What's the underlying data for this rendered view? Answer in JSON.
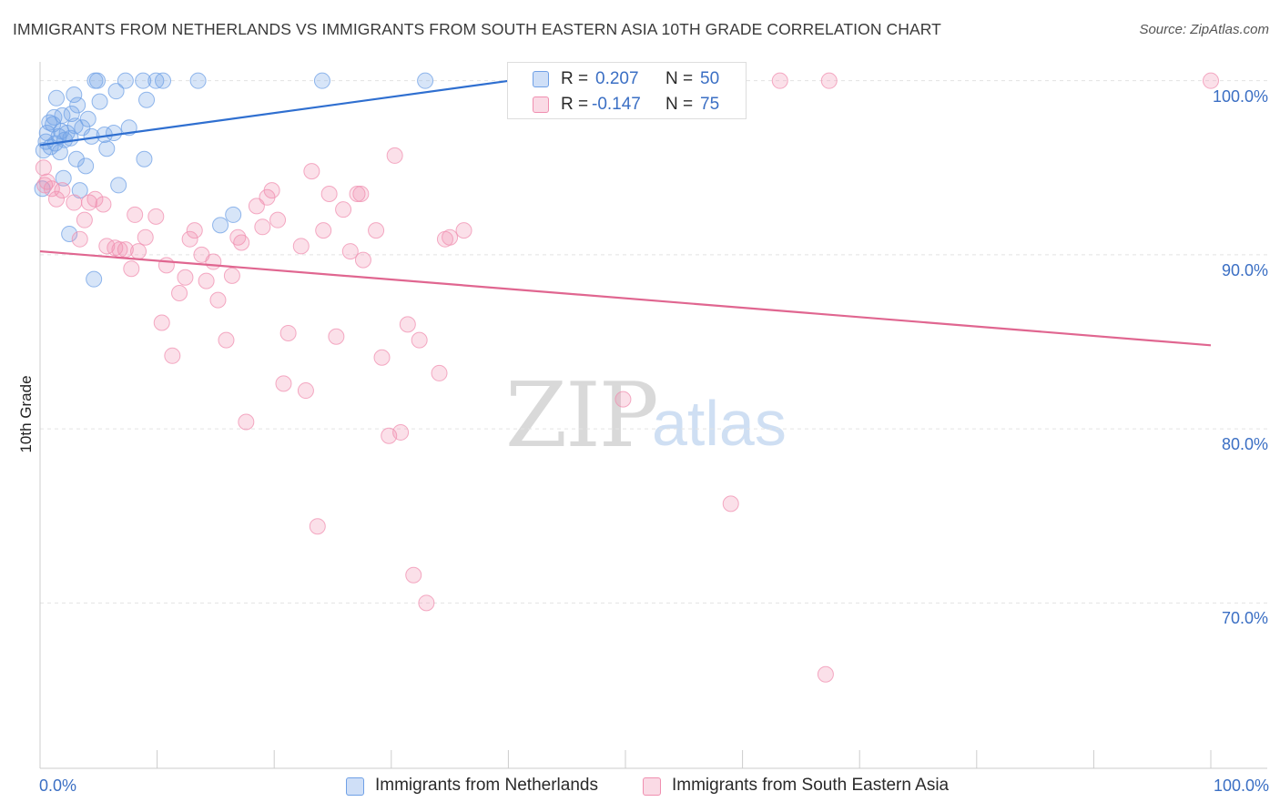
{
  "header": {
    "title": "IMMIGRANTS FROM NETHERLANDS VS IMMIGRANTS FROM SOUTH EASTERN ASIA 10TH GRADE CORRELATION CHART",
    "source": "Source: ZipAtlas.com"
  },
  "watermark": {
    "zip": "ZIP",
    "atlas": "atlas"
  },
  "legend": {
    "rows": [
      {
        "r_label": "R =",
        "r_value": "0.207",
        "n_label": "N =",
        "n_value": "50",
        "color": "#6fa0e6"
      },
      {
        "r_label": "R =",
        "r_value": "-0.147",
        "n_label": "N =",
        "n_value": "75",
        "color": "#f08fb0"
      }
    ]
  },
  "chart_data": {
    "type": "scatter",
    "title": "IMMIGRANTS FROM NETHERLANDS VS IMMIGRANTS FROM SOUTH EASTERN ASIA 10TH GRADE CORRELATION CHART",
    "xlabel": "",
    "ylabel": "10th Grade",
    "xlim": [
      0,
      100
    ],
    "ylim": [
      60.5,
      101.5
    ],
    "x_tick_labels": [
      "0.0%",
      "100.0%"
    ],
    "y_ticks": [
      70,
      80,
      90,
      100
    ],
    "y_tick_labels": [
      "70.0%",
      "80.0%",
      "90.0%",
      "100.0%"
    ],
    "grid": true,
    "legend_position": "top-center",
    "series": [
      {
        "name": "Immigrants from Netherlands",
        "color": "#6fa0e6",
        "trend": {
          "x": [
            0,
            40.1
          ],
          "y": [
            96.3,
            100.0
          ]
        },
        "points": [
          [
            0.3,
            96.0
          ],
          [
            0.5,
            96.5
          ],
          [
            0.6,
            97.0
          ],
          [
            0.9,
            96.2
          ],
          [
            1.1,
            97.5
          ],
          [
            1.2,
            97.9
          ],
          [
            1.4,
            99.0
          ],
          [
            1.6,
            96.8
          ],
          [
            1.8,
            97.1
          ],
          [
            1.9,
            98.0
          ],
          [
            2.1,
            96.6
          ],
          [
            2.3,
            97.0
          ],
          [
            2.5,
            91.2
          ],
          [
            2.7,
            98.1
          ],
          [
            2.9,
            99.2
          ],
          [
            3.1,
            95.5
          ],
          [
            3.2,
            98.6
          ],
          [
            3.4,
            93.7
          ],
          [
            3.6,
            97.3
          ],
          [
            3.9,
            95.1
          ],
          [
            4.1,
            97.8
          ],
          [
            4.4,
            96.8
          ],
          [
            4.6,
            88.6
          ],
          [
            4.7,
            100.0
          ],
          [
            4.9,
            100.0
          ],
          [
            5.1,
            98.8
          ],
          [
            5.7,
            96.1
          ],
          [
            6.3,
            97.0
          ],
          [
            6.5,
            99.4
          ],
          [
            6.7,
            94.0
          ],
          [
            7.3,
            100.0
          ],
          [
            7.6,
            97.3
          ],
          [
            8.8,
            100.0
          ],
          [
            8.9,
            95.5
          ],
          [
            9.1,
            98.9
          ],
          [
            9.9,
            100.0
          ],
          [
            10.5,
            100.0
          ],
          [
            13.5,
            100.0
          ],
          [
            15.4,
            91.7
          ],
          [
            16.5,
            92.3
          ],
          [
            24.1,
            100.0
          ],
          [
            32.9,
            100.0
          ],
          [
            0.2,
            93.8
          ],
          [
            1.3,
            96.4
          ],
          [
            2.0,
            94.4
          ],
          [
            0.8,
            97.6
          ],
          [
            1.7,
            95.9
          ],
          [
            3.0,
            97.4
          ],
          [
            5.5,
            96.9
          ],
          [
            2.6,
            96.7
          ]
        ]
      },
      {
        "name": "Immigrants from South Eastern Asia",
        "color": "#f08fb0",
        "trend": {
          "x": [
            0,
            100
          ],
          "y": [
            90.2,
            84.8
          ]
        },
        "points": [
          [
            0.3,
            95.0
          ],
          [
            0.4,
            94.0
          ],
          [
            1.0,
            93.8
          ],
          [
            1.4,
            93.2
          ],
          [
            1.9,
            93.7
          ],
          [
            2.9,
            93.0
          ],
          [
            3.4,
            90.9
          ],
          [
            3.8,
            92.0
          ],
          [
            4.2,
            93.0
          ],
          [
            4.7,
            93.2
          ],
          [
            5.4,
            92.9
          ],
          [
            5.7,
            90.5
          ],
          [
            6.4,
            90.4
          ],
          [
            6.8,
            90.3
          ],
          [
            7.3,
            90.3
          ],
          [
            7.8,
            89.2
          ],
          [
            8.1,
            92.3
          ],
          [
            8.4,
            90.2
          ],
          [
            9.0,
            91.0
          ],
          [
            9.9,
            92.2
          ],
          [
            10.4,
            86.1
          ],
          [
            10.8,
            89.4
          ],
          [
            11.3,
            84.2
          ],
          [
            11.9,
            87.8
          ],
          [
            12.4,
            88.7
          ],
          [
            12.8,
            90.9
          ],
          [
            13.2,
            91.4
          ],
          [
            13.8,
            90.0
          ],
          [
            14.2,
            88.5
          ],
          [
            14.8,
            89.6
          ],
          [
            15.2,
            87.4
          ],
          [
            15.9,
            85.1
          ],
          [
            16.4,
            88.8
          ],
          [
            16.9,
            91.0
          ],
          [
            17.2,
            90.7
          ],
          [
            17.6,
            80.4
          ],
          [
            18.5,
            92.8
          ],
          [
            19.0,
            91.6
          ],
          [
            19.4,
            93.3
          ],
          [
            19.8,
            93.7
          ],
          [
            20.3,
            92.0
          ],
          [
            20.8,
            82.6
          ],
          [
            21.2,
            85.5
          ],
          [
            22.3,
            90.5
          ],
          [
            22.7,
            82.2
          ],
          [
            23.2,
            94.8
          ],
          [
            23.7,
            74.4
          ],
          [
            24.2,
            91.4
          ],
          [
            24.7,
            93.5
          ],
          [
            25.3,
            85.3
          ],
          [
            25.9,
            92.6
          ],
          [
            26.5,
            90.2
          ],
          [
            27.1,
            93.5
          ],
          [
            27.6,
            89.7
          ],
          [
            28.7,
            91.4
          ],
          [
            29.2,
            84.1
          ],
          [
            29.8,
            79.6
          ],
          [
            30.3,
            95.7
          ],
          [
            30.8,
            79.8
          ],
          [
            31.4,
            86.0
          ],
          [
            31.9,
            71.6
          ],
          [
            32.4,
            85.1
          ],
          [
            33.0,
            70.0
          ],
          [
            34.1,
            83.2
          ],
          [
            34.6,
            90.9
          ],
          [
            35.0,
            91.0
          ],
          [
            36.2,
            91.4
          ],
          [
            27.4,
            93.5
          ],
          [
            49.8,
            81.7
          ],
          [
            59.0,
            75.7
          ],
          [
            63.2,
            100.0
          ],
          [
            67.4,
            100.0
          ],
          [
            67.1,
            65.9
          ],
          [
            100.0,
            100.0
          ],
          [
            0.6,
            94.2
          ]
        ]
      }
    ]
  },
  "bottom_legend": {
    "items": [
      {
        "label": "Immigrants from Netherlands",
        "color": "#6fa0e6"
      },
      {
        "label": "Immigrants from South Eastern Asia",
        "color": "#f08fb0"
      }
    ]
  }
}
